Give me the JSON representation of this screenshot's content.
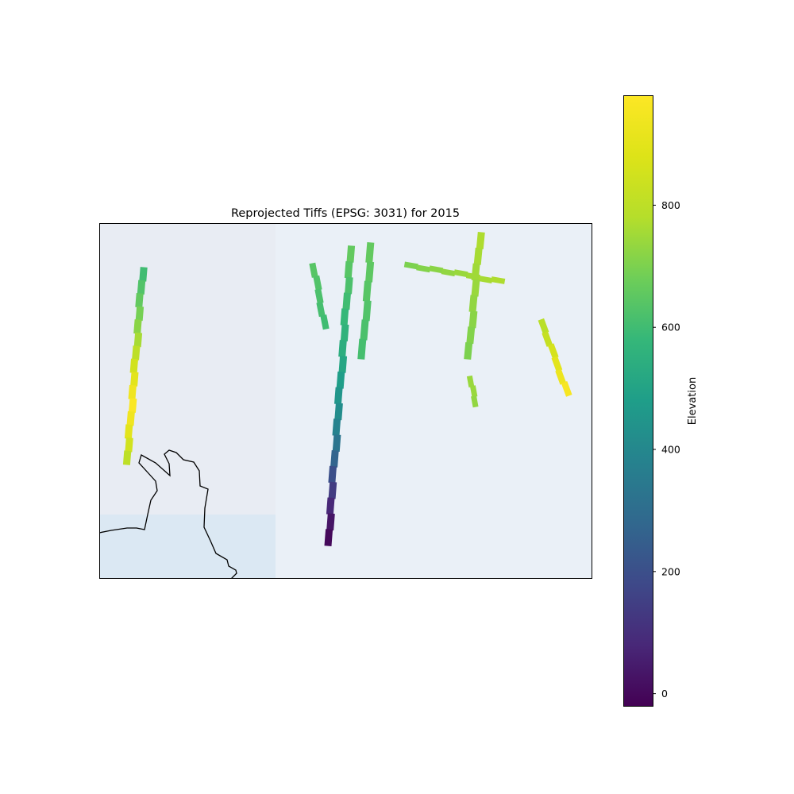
{
  "figure": {
    "title": "Reprojected Tiffs (EPSG: 3031) for 2015"
  },
  "colorbar": {
    "label": "Elevation",
    "colormap": "viridis",
    "min": -20,
    "max": 980,
    "ticks": [
      0,
      200,
      400,
      600,
      800
    ]
  },
  "colors": {
    "background_left": "#e8ecf3",
    "background_right": "#eaf0f7",
    "water": "#dbe8f3",
    "coastline": "#000000"
  },
  "chart_data": {
    "type": "heatmap",
    "title": "Reprojected Tiffs (EPSG: 3031) for 2015",
    "colorbar_label": "Elevation",
    "value_range": [
      -20,
      980
    ],
    "colorbar_ticks": [
      0,
      200,
      400,
      600,
      800
    ],
    "grid": false,
    "legend": "colorbar-right",
    "series": [
      {
        "elevation_profile": [
          600,
          630,
          660,
          690,
          720,
          760,
          800,
          850,
          900,
          940,
          970,
          940,
          900,
          850,
          800
        ]
      },
      {
        "elevation_profile": [
          640,
          630,
          620,
          610,
          600
        ]
      },
      {
        "elevation_profile": [
          660,
          640,
          620,
          600,
          580,
          560,
          540,
          510,
          480,
          450,
          420,
          380,
          330,
          270,
          200,
          140,
          80,
          30,
          0
        ]
      },
      {
        "elevation_profile": [
          660,
          650,
          640,
          630,
          620,
          610
        ]
      },
      {
        "elevation_profile": [
          700,
          710,
          720,
          730,
          740,
          750,
          760,
          770
        ]
      },
      {
        "elevation_profile": [
          770,
          760,
          750,
          740,
          730,
          720,
          710,
          700
        ]
      },
      {
        "elevation_profile": [
          740,
          740,
          730
        ]
      },
      {
        "elevation_profile": [
          790,
          820,
          860,
          900,
          930,
          960
        ]
      }
    ]
  }
}
